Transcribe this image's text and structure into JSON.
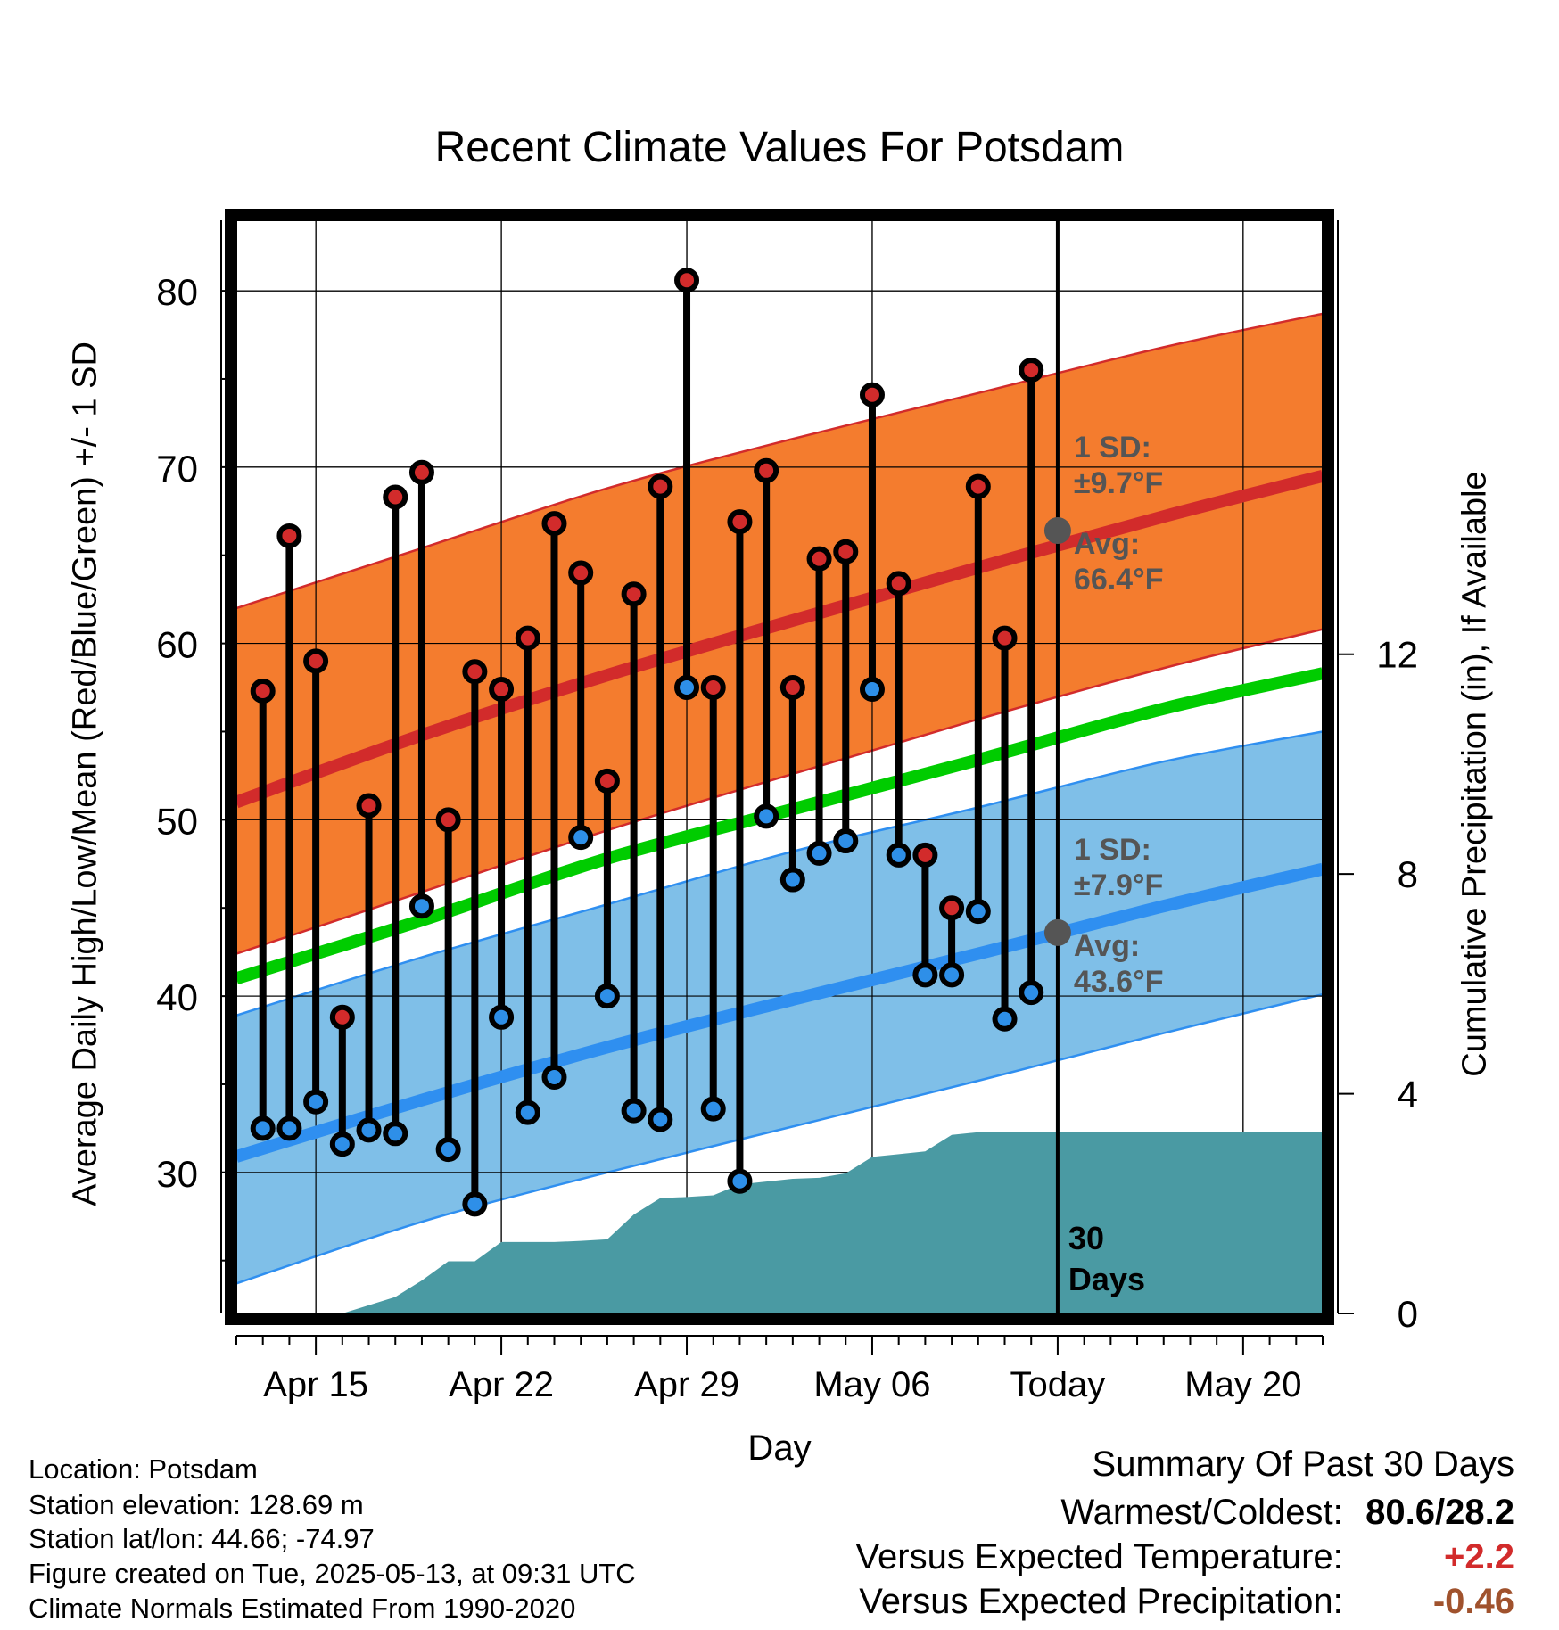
{
  "chart_data": {
    "type": "line",
    "title": "Recent Climate Values For Potsdam",
    "xlabel": "Day",
    "ylabel": "Average Daily High/Low/Mean (Red/Blue/Green) +/- 1 SD",
    "ylabel_right": "Cumulative Precipitation (in), If Available",
    "x_tick_labels": [
      "Apr 15",
      "Apr 22",
      "Apr 29",
      "May 06",
      "Today",
      "May 20"
    ],
    "x_tick_dates": [
      "2025-04-15",
      "2025-04-22",
      "2025-04-29",
      "2025-05-06",
      "2025-05-13",
      "2025-05-20"
    ],
    "xlim": [
      "2025-04-12",
      "2025-05-23"
    ],
    "ylim": [
      22,
      84
    ],
    "yticks": [
      30,
      40,
      50,
      60,
      70,
      80
    ],
    "ylim_right": [
      0,
      19.9
    ],
    "yticks_right": [
      0,
      4,
      8,
      12
    ],
    "grid": true,
    "today": "2025-05-13",
    "today_label": "Today",
    "colors": {
      "high_band": "#f47c2e",
      "high_mean": "#d22b2b",
      "low_band": "#7fbfe8",
      "low_mean": "#2f8ff0",
      "mean": "#00cc00",
      "precip": "#4a9aa3",
      "high_point": "#d22b2b",
      "low_point": "#2e8fe8",
      "annotation": "#555555"
    },
    "normals": {
      "dates": [
        "2025-04-12",
        "2025-04-19",
        "2025-04-26",
        "2025-05-03",
        "2025-05-10",
        "2025-05-17",
        "2025-05-23"
      ],
      "high_mean": [
        51.0,
        54.8,
        58.2,
        61.3,
        64.3,
        67.2,
        69.5
      ],
      "high_upper": [
        62.0,
        65.4,
        68.8,
        71.6,
        74.2,
        76.8,
        78.7
      ],
      "high_lower": [
        42.4,
        45.9,
        49.4,
        52.6,
        55.7,
        58.6,
        60.8
      ],
      "mean": [
        41.0,
        44.3,
        47.8,
        50.6,
        53.4,
        56.3,
        58.3
      ],
      "low_mean": [
        30.9,
        34.1,
        37.1,
        39.8,
        42.4,
        45.1,
        47.2
      ],
      "low_upper": [
        38.9,
        42.2,
        45.2,
        48.2,
        50.7,
        53.3,
        55.0
      ],
      "low_lower": [
        23.7,
        27.2,
        30.0,
        32.6,
        35.2,
        37.9,
        40.1
      ]
    },
    "series": [
      {
        "name": "High",
        "dates": [
          "2025-04-13",
          "2025-04-14",
          "2025-04-15",
          "2025-04-16",
          "2025-04-17",
          "2025-04-18",
          "2025-04-19",
          "2025-04-20",
          "2025-04-21",
          "2025-04-22",
          "2025-04-23",
          "2025-04-24",
          "2025-04-25",
          "2025-04-26",
          "2025-04-27",
          "2025-04-28",
          "2025-04-29",
          "2025-04-30",
          "2025-05-01",
          "2025-05-02",
          "2025-05-03",
          "2025-05-04",
          "2025-05-05",
          "2025-05-06",
          "2025-05-07",
          "2025-05-08",
          "2025-05-09",
          "2025-05-10",
          "2025-05-11",
          "2025-05-12"
        ],
        "values": [
          57.3,
          66.1,
          59.0,
          38.8,
          50.8,
          68.3,
          69.7,
          50.0,
          58.4,
          57.4,
          60.3,
          66.8,
          64.0,
          52.2,
          62.8,
          68.9,
          80.6,
          57.5,
          66.9,
          69.8,
          57.5,
          64.8,
          65.2,
          74.1,
          63.4,
          48.0,
          45.0,
          68.9,
          60.3,
          75.5
        ]
      },
      {
        "name": "Low",
        "dates": [
          "2025-04-13",
          "2025-04-14",
          "2025-04-15",
          "2025-04-16",
          "2025-04-17",
          "2025-04-18",
          "2025-04-19",
          "2025-04-20",
          "2025-04-21",
          "2025-04-22",
          "2025-04-23",
          "2025-04-24",
          "2025-04-25",
          "2025-04-26",
          "2025-04-27",
          "2025-04-28",
          "2025-04-29",
          "2025-04-30",
          "2025-05-01",
          "2025-05-02",
          "2025-05-03",
          "2025-05-04",
          "2025-05-05",
          "2025-05-06",
          "2025-05-07",
          "2025-05-08",
          "2025-05-09",
          "2025-05-10",
          "2025-05-11",
          "2025-05-12"
        ],
        "values": [
          32.5,
          32.5,
          34.0,
          31.6,
          32.4,
          32.2,
          45.1,
          31.3,
          28.2,
          38.8,
          33.4,
          35.4,
          49.0,
          40.0,
          33.5,
          33.0,
          57.5,
          33.6,
          29.5,
          50.2,
          46.6,
          48.1,
          48.8,
          57.4,
          48.0,
          41.2,
          41.2,
          44.8,
          38.7,
          40.2
        ]
      },
      {
        "name": "Cumulative Precipitation",
        "axis": "right",
        "dates": [
          "2025-04-12",
          "2025-04-13",
          "2025-04-14",
          "2025-04-15",
          "2025-04-16",
          "2025-04-17",
          "2025-04-18",
          "2025-04-19",
          "2025-04-20",
          "2025-04-21",
          "2025-04-22",
          "2025-04-23",
          "2025-04-24",
          "2025-04-25",
          "2025-04-26",
          "2025-04-27",
          "2025-04-28",
          "2025-04-29",
          "2025-04-30",
          "2025-05-01",
          "2025-05-02",
          "2025-05-03",
          "2025-05-04",
          "2025-05-05",
          "2025-05-06",
          "2025-05-07",
          "2025-05-08",
          "2025-05-09",
          "2025-05-10",
          "2025-05-11",
          "2025-05-12",
          "2025-05-23"
        ],
        "values": [
          0.0,
          0.0,
          0.0,
          0.0,
          0.0,
          0.15,
          0.3,
          0.6,
          0.95,
          0.95,
          1.3,
          1.3,
          1.3,
          1.32,
          1.35,
          1.8,
          2.1,
          2.12,
          2.15,
          2.35,
          2.4,
          2.45,
          2.47,
          2.55,
          2.85,
          2.9,
          2.95,
          3.25,
          3.3,
          3.3,
          3.3,
          3.3
        ]
      }
    ],
    "annotations": {
      "high_sd_label": "1 SD:",
      "high_sd_value": "±9.7°F",
      "high_avg_label": "Avg:",
      "high_avg_value": "66.4°F",
      "high_avg_point": 66.4,
      "low_sd_label": "1 SD:",
      "low_sd_value": "±7.9°F",
      "low_avg_label": "Avg:",
      "low_avg_value": "43.6°F",
      "low_avg_point": 43.6,
      "days_label_1": "30",
      "days_label_2": "Days"
    }
  },
  "info": {
    "location": "Location: Potsdam",
    "elevation": "Station elevation: 128.69 m",
    "latlon": "Station lat/lon: 44.66; -74.97",
    "created": "Figure created on Tue, 2025-05-13, at 09:31 UTC",
    "normals": "Climate Normals Estimated From 1990-2020"
  },
  "summary": {
    "title": "Summary Of Past 30 Days",
    "warmest_label": "Warmest/Coldest:",
    "warmest_value": "80.6/28.2",
    "temp_label": "Versus Expected Temperature:",
    "temp_value": "+2.2",
    "temp_color": "#d22b2b",
    "precip_label": "Versus Expected Precipitation:",
    "precip_value": "-0.46",
    "precip_color": "#a0522d"
  }
}
